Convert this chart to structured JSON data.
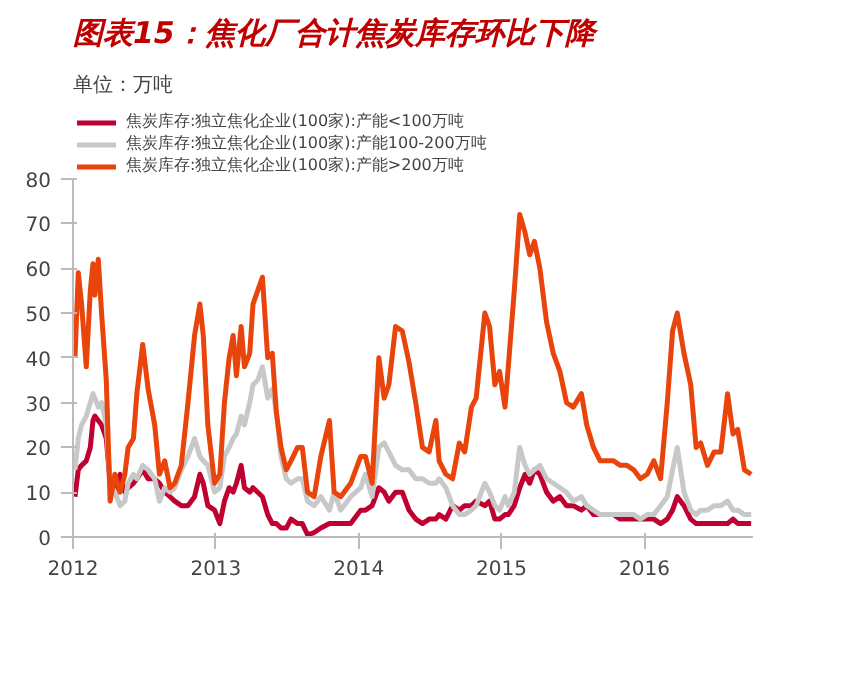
{
  "chart_data": {
    "type": "line",
    "title": "图表15：焦化厂合计焦炭库存环比下降",
    "ylabel": "单位：万吨",
    "xlim": [
      2012,
      2016.76
    ],
    "xticks": [
      2012,
      2013,
      2014,
      2015,
      2016
    ],
    "ylim": [
      0,
      80
    ],
    "yticks": [
      0,
      10,
      20,
      30,
      40,
      50,
      60,
      70,
      80
    ],
    "grid": false,
    "legend": "top",
    "marker": "none",
    "line_style": "solid",
    "series": [
      {
        "name": "焦炭库存:独立焦化企业(100家):产能<100万吨",
        "color": "#c00030",
        "x": [
          2012.014,
          2012.037,
          2012.06,
          2012.093,
          2012.121,
          2012.14,
          2012.153,
          2012.177,
          2012.2,
          2012.233,
          2012.26,
          2012.293,
          2012.33,
          2012.363,
          2012.386,
          2012.423,
          2012.447,
          2012.488,
          2012.526,
          2012.572,
          2012.605,
          2012.642,
          2012.679,
          2012.712,
          2012.758,
          2012.805,
          2012.851,
          2012.888,
          2012.912,
          2012.944,
          2012.991,
          2013.028,
          2013.06,
          2013.093,
          2013.121,
          2013.144,
          2013.177,
          2013.2,
          2013.237,
          2013.26,
          2013.293,
          2013.326,
          2013.363,
          2013.395,
          2013.423,
          2013.456,
          2013.493,
          2013.526,
          2013.572,
          2013.605,
          2013.642,
          2013.688,
          2013.735,
          2013.795,
          2013.828,
          2013.874,
          2013.944,
          2014.014,
          2014.047,
          2014.094,
          2014.141,
          2014.178,
          2014.211,
          2014.258,
          2014.305,
          2014.352,
          2014.399,
          2014.446,
          2014.493,
          2014.54,
          2014.563,
          2014.61,
          2014.657,
          2014.704,
          2014.742,
          2014.789,
          2014.822,
          2014.883,
          2014.916,
          2014.953,
          2014.986,
          2015.024,
          2015.047,
          2015.089,
          2015.127,
          2015.164,
          2015.197,
          2015.23,
          2015.268,
          2015.315,
          2015.362,
          2015.408,
          2015.455,
          2015.502,
          2015.559,
          2015.596,
          2015.643,
          2015.69,
          2015.737,
          2015.784,
          2015.831,
          2015.878,
          2015.925,
          2015.972,
          2016.019,
          2016.066,
          2016.113,
          2016.16,
          2016.197,
          2016.23,
          2016.277,
          2016.324,
          2016.362,
          2016.394,
          2016.441,
          2016.488,
          2016.535,
          2016.582,
          2016.62,
          2016.653,
          2016.7,
          2016.747
        ],
        "values": [
          9,
          15,
          16,
          17,
          20,
          26,
          27,
          26,
          25,
          22,
          12,
          10,
          14,
          10,
          11,
          12,
          13,
          15,
          13,
          13,
          12,
          10,
          9,
          8,
          7,
          7,
          9,
          14,
          12,
          7,
          6,
          3,
          8,
          11,
          10,
          12,
          16,
          11,
          10,
          11,
          10,
          9,
          5,
          3,
          3,
          2,
          2,
          4,
          3,
          3,
          0.5,
          1,
          2,
          3,
          3,
          3,
          3,
          6,
          6,
          7,
          11,
          10,
          8,
          10,
          10,
          6,
          4,
          3,
          4,
          4,
          5,
          4,
          7,
          6,
          7,
          7,
          8,
          7,
          8,
          4,
          4,
          5,
          5,
          7,
          11,
          14,
          12,
          15,
          14,
          10,
          8,
          9,
          7,
          7,
          6,
          7,
          5,
          5,
          5,
          5,
          4,
          4,
          4,
          4,
          4,
          4,
          3,
          4,
          6,
          9,
          7,
          4,
          3,
          3,
          3,
          3,
          3,
          3,
          4,
          3,
          3,
          3
        ]
      },
      {
        "name": "焦炭库存:独立焦化企业(100家):产能100-200万吨",
        "color": "#c8c8c8",
        "x": [
          2012.014,
          2012.037,
          2012.06,
          2012.093,
          2012.121,
          2012.14,
          2012.153,
          2012.177,
          2012.2,
          2012.233,
          2012.26,
          2012.293,
          2012.33,
          2012.363,
          2012.386,
          2012.423,
          2012.447,
          2012.488,
          2012.526,
          2012.572,
          2012.605,
          2012.642,
          2012.679,
          2012.712,
          2012.758,
          2012.805,
          2012.851,
          2012.888,
          2012.912,
          2012.944,
          2012.991,
          2013.028,
          2013.06,
          2013.093,
          2013.121,
          2013.144,
          2013.177,
          2013.2,
          2013.237,
          2013.26,
          2013.293,
          2013.326,
          2013.363,
          2013.395,
          2013.423,
          2013.456,
          2013.493,
          2013.526,
          2013.572,
          2013.605,
          2013.642,
          2013.688,
          2013.735,
          2013.795,
          2013.828,
          2013.874,
          2013.944,
          2014.014,
          2014.047,
          2014.094,
          2014.141,
          2014.178,
          2014.211,
          2014.258,
          2014.305,
          2014.352,
          2014.399,
          2014.446,
          2014.493,
          2014.54,
          2014.563,
          2014.61,
          2014.657,
          2014.704,
          2014.742,
          2014.789,
          2014.822,
          2014.883,
          2014.916,
          2014.953,
          2014.986,
          2015.024,
          2015.047,
          2015.089,
          2015.127,
          2015.164,
          2015.197,
          2015.23,
          2015.268,
          2015.315,
          2015.362,
          2015.408,
          2015.455,
          2015.502,
          2015.559,
          2015.596,
          2015.643,
          2015.69,
          2015.737,
          2015.784,
          2015.831,
          2015.878,
          2015.925,
          2015.972,
          2016.019,
          2016.066,
          2016.113,
          2016.16,
          2016.197,
          2016.23,
          2016.277,
          2016.324,
          2016.362,
          2016.394,
          2016.441,
          2016.488,
          2016.535,
          2016.582,
          2016.62,
          2016.653,
          2016.7,
          2016.747
        ],
        "values": [
          15,
          22,
          25,
          27,
          30,
          32,
          31,
          29,
          30,
          25,
          12,
          10,
          7,
          8,
          12,
          14,
          13,
          16,
          15,
          13,
          8,
          11,
          10,
          11,
          15,
          18,
          22,
          18,
          17,
          16,
          10,
          11,
          18,
          20,
          22,
          23,
          27,
          25,
          30,
          34,
          35,
          38,
          31,
          33,
          28,
          18,
          13,
          12,
          13,
          13,
          8,
          7,
          9,
          6,
          10,
          6,
          9,
          11,
          14,
          9,
          20,
          21,
          19,
          16,
          15,
          15,
          13,
          13,
          12,
          12,
          13,
          11,
          7,
          5,
          5,
          6,
          7,
          12,
          10,
          7,
          6,
          9,
          7,
          10,
          20,
          16,
          14,
          15,
          16,
          13,
          12,
          11,
          10,
          8,
          9,
          7,
          6,
          5,
          5,
          5,
          5,
          5,
          5,
          4,
          5,
          5,
          7,
          9,
          15,
          20,
          10,
          6,
          5,
          6,
          6,
          7,
          7,
          8,
          6,
          6,
          5,
          5
        ]
      },
      {
        "name": "焦炭库存:独立焦化企业(100家):产能>200万吨",
        "color": "#e8440c",
        "x": [
          2012.014,
          2012.037,
          2012.06,
          2012.093,
          2012.121,
          2012.14,
          2012.153,
          2012.177,
          2012.2,
          2012.233,
          2012.26,
          2012.293,
          2012.33,
          2012.363,
          2012.386,
          2012.423,
          2012.447,
          2012.488,
          2012.526,
          2012.572,
          2012.605,
          2012.642,
          2012.679,
          2012.712,
          2012.758,
          2012.805,
          2012.851,
          2012.888,
          2012.912,
          2012.944,
          2012.991,
          2013.028,
          2013.06,
          2013.093,
          2013.121,
          2013.144,
          2013.177,
          2013.2,
          2013.237,
          2013.26,
          2013.293,
          2013.326,
          2013.363,
          2013.395,
          2013.423,
          2013.456,
          2013.493,
          2013.526,
          2013.572,
          2013.605,
          2013.642,
          2013.688,
          2013.735,
          2013.795,
          2013.828,
          2013.874,
          2013.944,
          2014.014,
          2014.047,
          2014.094,
          2014.141,
          2014.178,
          2014.211,
          2014.258,
          2014.305,
          2014.352,
          2014.399,
          2014.446,
          2014.493,
          2014.54,
          2014.563,
          2014.61,
          2014.657,
          2014.704,
          2014.742,
          2014.789,
          2014.822,
          2014.883,
          2014.916,
          2014.953,
          2014.986,
          2015.024,
          2015.047,
          2015.089,
          2015.127,
          2015.164,
          2015.197,
          2015.23,
          2015.268,
          2015.315,
          2015.362,
          2015.408,
          2015.455,
          2015.502,
          2015.559,
          2015.596,
          2015.643,
          2015.69,
          2015.737,
          2015.784,
          2015.831,
          2015.878,
          2015.925,
          2015.972,
          2016.019,
          2016.066,
          2016.113,
          2016.16,
          2016.197,
          2016.23,
          2016.277,
          2016.324,
          2016.362,
          2016.394,
          2016.441,
          2016.488,
          2016.535,
          2016.582,
          2016.62,
          2016.653,
          2016.7,
          2016.747
        ],
        "values": [
          40,
          59,
          52,
          38,
          55,
          61,
          54,
          62,
          50,
          35,
          8,
          14,
          10,
          14,
          20,
          22,
          32,
          43,
          33,
          25,
          14,
          17,
          11,
          12,
          16,
          30,
          45,
          52,
          45,
          25,
          12,
          14,
          30,
          40,
          45,
          36,
          47,
          38,
          41,
          52,
          55,
          58,
          40,
          41,
          28,
          20,
          15,
          17,
          20,
          20,
          10,
          9,
          18,
          26,
          10,
          9,
          12,
          18,
          18,
          12,
          40,
          31,
          34,
          47,
          46,
          39,
          30,
          20,
          19,
          26,
          17,
          14,
          13,
          21,
          19,
          29,
          31,
          50,
          47,
          34,
          37,
          29,
          38,
          55,
          72,
          68,
          63,
          66,
          60,
          48,
          41,
          37,
          30,
          29,
          32,
          25,
          20,
          17,
          17,
          17,
          16,
          16,
          15,
          13,
          14,
          17,
          13,
          30,
          46,
          50,
          41,
          34,
          20,
          21,
          16,
          19,
          19,
          32,
          23,
          24,
          15,
          14
        ]
      }
    ]
  }
}
